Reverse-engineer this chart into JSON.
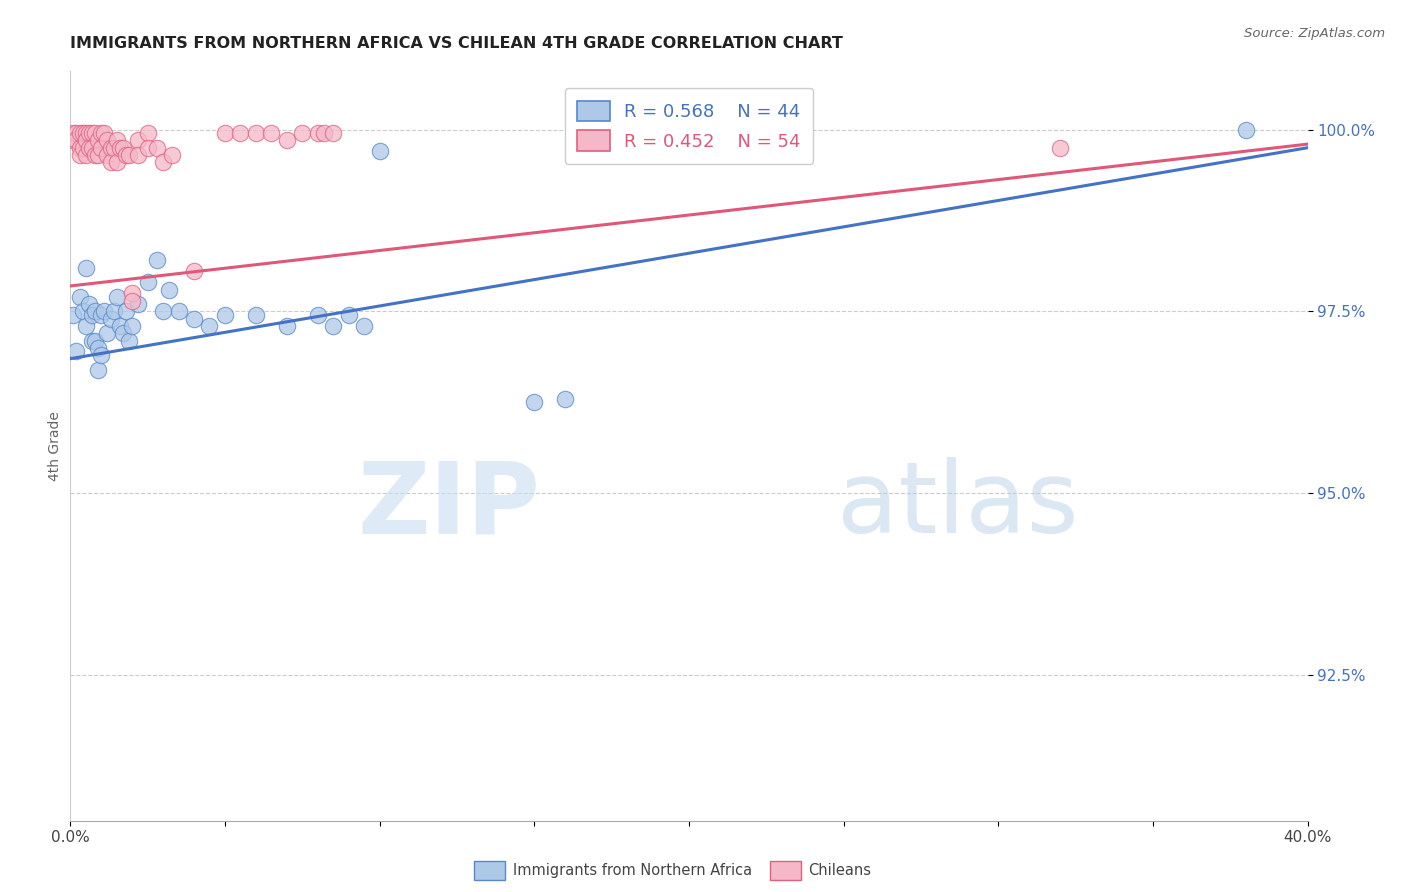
{
  "title": "IMMIGRANTS FROM NORTHERN AFRICA VS CHILEAN 4TH GRADE CORRELATION CHART",
  "source": "Source: ZipAtlas.com",
  "ylabel": "4th Grade",
  "yaxis_labels": [
    "100.0%",
    "97.5%",
    "95.0%",
    "92.5%"
  ],
  "yaxis_values": [
    1.0,
    0.975,
    0.95,
    0.925
  ],
  "xaxis_range": [
    0.0,
    0.4
  ],
  "yaxis_range": [
    0.905,
    1.008
  ],
  "legend_blue_r": "0.568",
  "legend_blue_n": "44",
  "legend_pink_r": "0.452",
  "legend_pink_n": "54",
  "blue_fill": "#aec8e8",
  "pink_fill": "#f4b8c8",
  "blue_edge": "#5588cc",
  "pink_edge": "#e06080",
  "blue_line_color": "#4472c4",
  "pink_line_color": "#e05878",
  "blue_scatter": [
    [
      0.001,
      0.9745
    ],
    [
      0.002,
      0.9695
    ],
    [
      0.003,
      0.977
    ],
    [
      0.004,
      0.975
    ],
    [
      0.005,
      0.981
    ],
    [
      0.005,
      0.973
    ],
    [
      0.006,
      0.976
    ],
    [
      0.007,
      0.9745
    ],
    [
      0.007,
      0.971
    ],
    [
      0.008,
      0.975
    ],
    [
      0.008,
      0.971
    ],
    [
      0.009,
      0.97
    ],
    [
      0.009,
      0.967
    ],
    [
      0.01,
      0.9745
    ],
    [
      0.01,
      0.969
    ],
    [
      0.011,
      0.975
    ],
    [
      0.012,
      0.972
    ],
    [
      0.013,
      0.974
    ],
    [
      0.014,
      0.975
    ],
    [
      0.015,
      0.977
    ],
    [
      0.016,
      0.973
    ],
    [
      0.017,
      0.972
    ],
    [
      0.018,
      0.975
    ],
    [
      0.019,
      0.971
    ],
    [
      0.02,
      0.973
    ],
    [
      0.022,
      0.976
    ],
    [
      0.025,
      0.979
    ],
    [
      0.028,
      0.982
    ],
    [
      0.03,
      0.975
    ],
    [
      0.032,
      0.978
    ],
    [
      0.035,
      0.975
    ],
    [
      0.04,
      0.974
    ],
    [
      0.045,
      0.973
    ],
    [
      0.05,
      0.9745
    ],
    [
      0.06,
      0.9745
    ],
    [
      0.07,
      0.973
    ],
    [
      0.08,
      0.9745
    ],
    [
      0.085,
      0.973
    ],
    [
      0.09,
      0.9745
    ],
    [
      0.095,
      0.973
    ],
    [
      0.1,
      0.997
    ],
    [
      0.15,
      0.9625
    ],
    [
      0.16,
      0.963
    ],
    [
      0.38,
      1.0
    ]
  ],
  "pink_scatter": [
    [
      0.001,
      0.9995
    ],
    [
      0.001,
      0.9985
    ],
    [
      0.002,
      0.9995
    ],
    [
      0.002,
      0.9985
    ],
    [
      0.003,
      0.9995
    ],
    [
      0.003,
      0.9975
    ],
    [
      0.003,
      0.9965
    ],
    [
      0.004,
      0.9995
    ],
    [
      0.004,
      0.9975
    ],
    [
      0.005,
      0.9995
    ],
    [
      0.005,
      0.9985
    ],
    [
      0.005,
      0.9965
    ],
    [
      0.006,
      0.9995
    ],
    [
      0.006,
      0.9975
    ],
    [
      0.007,
      0.9995
    ],
    [
      0.007,
      0.9975
    ],
    [
      0.008,
      0.9995
    ],
    [
      0.008,
      0.9965
    ],
    [
      0.009,
      0.9985
    ],
    [
      0.009,
      0.9965
    ],
    [
      0.01,
      0.9995
    ],
    [
      0.01,
      0.9975
    ],
    [
      0.011,
      0.9995
    ],
    [
      0.012,
      0.9985
    ],
    [
      0.012,
      0.9965
    ],
    [
      0.013,
      0.9975
    ],
    [
      0.013,
      0.9955
    ],
    [
      0.014,
      0.9975
    ],
    [
      0.015,
      0.9985
    ],
    [
      0.015,
      0.9955
    ],
    [
      0.016,
      0.9975
    ],
    [
      0.017,
      0.9975
    ],
    [
      0.018,
      0.9965
    ],
    [
      0.019,
      0.9965
    ],
    [
      0.02,
      0.9775
    ],
    [
      0.02,
      0.9765
    ],
    [
      0.022,
      0.9985
    ],
    [
      0.022,
      0.9965
    ],
    [
      0.025,
      0.9995
    ],
    [
      0.025,
      0.9975
    ],
    [
      0.028,
      0.9975
    ],
    [
      0.03,
      0.9955
    ],
    [
      0.033,
      0.9965
    ],
    [
      0.04,
      0.9805
    ],
    [
      0.05,
      0.9995
    ],
    [
      0.055,
      0.9995
    ],
    [
      0.06,
      0.9995
    ],
    [
      0.065,
      0.9995
    ],
    [
      0.07,
      0.9985
    ],
    [
      0.075,
      0.9995
    ],
    [
      0.08,
      0.9995
    ],
    [
      0.082,
      0.9995
    ],
    [
      0.085,
      0.9995
    ],
    [
      0.32,
      0.9975
    ]
  ],
  "blue_line_x": [
    0.0,
    0.4
  ],
  "blue_line_y": [
    0.9685,
    0.9975
  ],
  "pink_line_x": [
    0.0,
    0.4
  ],
  "pink_line_y": [
    0.9785,
    0.998
  ],
  "watermark_zip": "ZIP",
  "watermark_atlas": "atlas",
  "background_color": "#ffffff",
  "grid_color": "#cccccc",
  "bottom_legend_blue_label": "Immigrants from Northern Africa",
  "bottom_legend_pink_label": "Chileans"
}
